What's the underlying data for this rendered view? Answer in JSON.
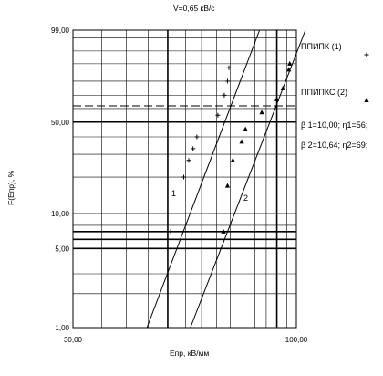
{
  "chart_data": {
    "type": "scatter",
    "title": "V=0,65 кВ/с",
    "xlabel": "Епр, кВ/мм",
    "ylabel": "F(Епр), %",
    "x_scale": "log",
    "y_scale": "weibull",
    "xlim": [
      30,
      100
    ],
    "ylim": [
      1,
      99
    ],
    "x_tick_labels": [
      {
        "value": 30,
        "label": "30,00"
      },
      {
        "value": 100,
        "label": "100,00"
      }
    ],
    "y_tick_labels": [
      {
        "value": 1,
        "label": "1,00"
      },
      {
        "value": 5,
        "label": "5,00"
      },
      {
        "value": 10,
        "label": "10,00"
      },
      {
        "value": 50,
        "label": "50,00"
      },
      {
        "value": 99,
        "label": "99,00"
      }
    ],
    "x_gridlines": [
      30,
      35,
      40,
      45,
      50,
      55,
      60,
      65,
      70,
      75,
      80,
      85,
      90,
      95,
      100
    ],
    "y_gridlines": [
      1,
      2,
      3,
      5,
      10,
      20,
      30,
      40,
      50,
      60,
      70,
      80,
      90,
      95,
      98,
      99
    ],
    "y_bold_lines": [
      5,
      6,
      7,
      8,
      50
    ],
    "x_bold_lines": [
      50,
      90
    ],
    "reference_dashed_y": 62,
    "series": [
      {
        "name": "ППИПК (1)",
        "marker": "+",
        "fit_label": "1",
        "fit_line": {
          "x": [
            44.7,
            82
          ],
          "y": [
            1,
            99
          ]
        },
        "points": [
          {
            "x": 50.8,
            "y": 7
          },
          {
            "x": 54.5,
            "y": 20
          },
          {
            "x": 56.0,
            "y": 27
          },
          {
            "x": 57.3,
            "y": 33
          },
          {
            "x": 58.5,
            "y": 40
          },
          {
            "x": 65.5,
            "y": 55
          },
          {
            "x": 67.8,
            "y": 70
          },
          {
            "x": 69.0,
            "y": 80
          },
          {
            "x": 69.5,
            "y": 88
          }
        ]
      },
      {
        "name": "ППИПКС (2)",
        "marker": "triangle",
        "fit_label": "2",
        "fit_line": {
          "x": [
            56.5,
            105
          ],
          "y": [
            1,
            99
          ]
        },
        "points": [
          {
            "x": 67.5,
            "y": 7
          },
          {
            "x": 69.0,
            "y": 17
          },
          {
            "x": 71.0,
            "y": 27
          },
          {
            "x": 74.5,
            "y": 37
          },
          {
            "x": 76.0,
            "y": 45
          },
          {
            "x": 83.0,
            "y": 57
          },
          {
            "x": 90.0,
            "y": 67
          },
          {
            "x": 93.0,
            "y": 75
          },
          {
            "x": 96.0,
            "y": 87
          },
          {
            "x": 96.5,
            "y": 90
          }
        ]
      }
    ],
    "legend_placement": "right",
    "legend": [
      {
        "label": "ППИПК (1)",
        "marker": "+"
      },
      {
        "label": "ППИПКС (2)",
        "marker": "triangle"
      }
    ],
    "annotations": [
      "β 1=10,00; η1=56;",
      "β 2=10,64; η2=69;"
    ]
  }
}
